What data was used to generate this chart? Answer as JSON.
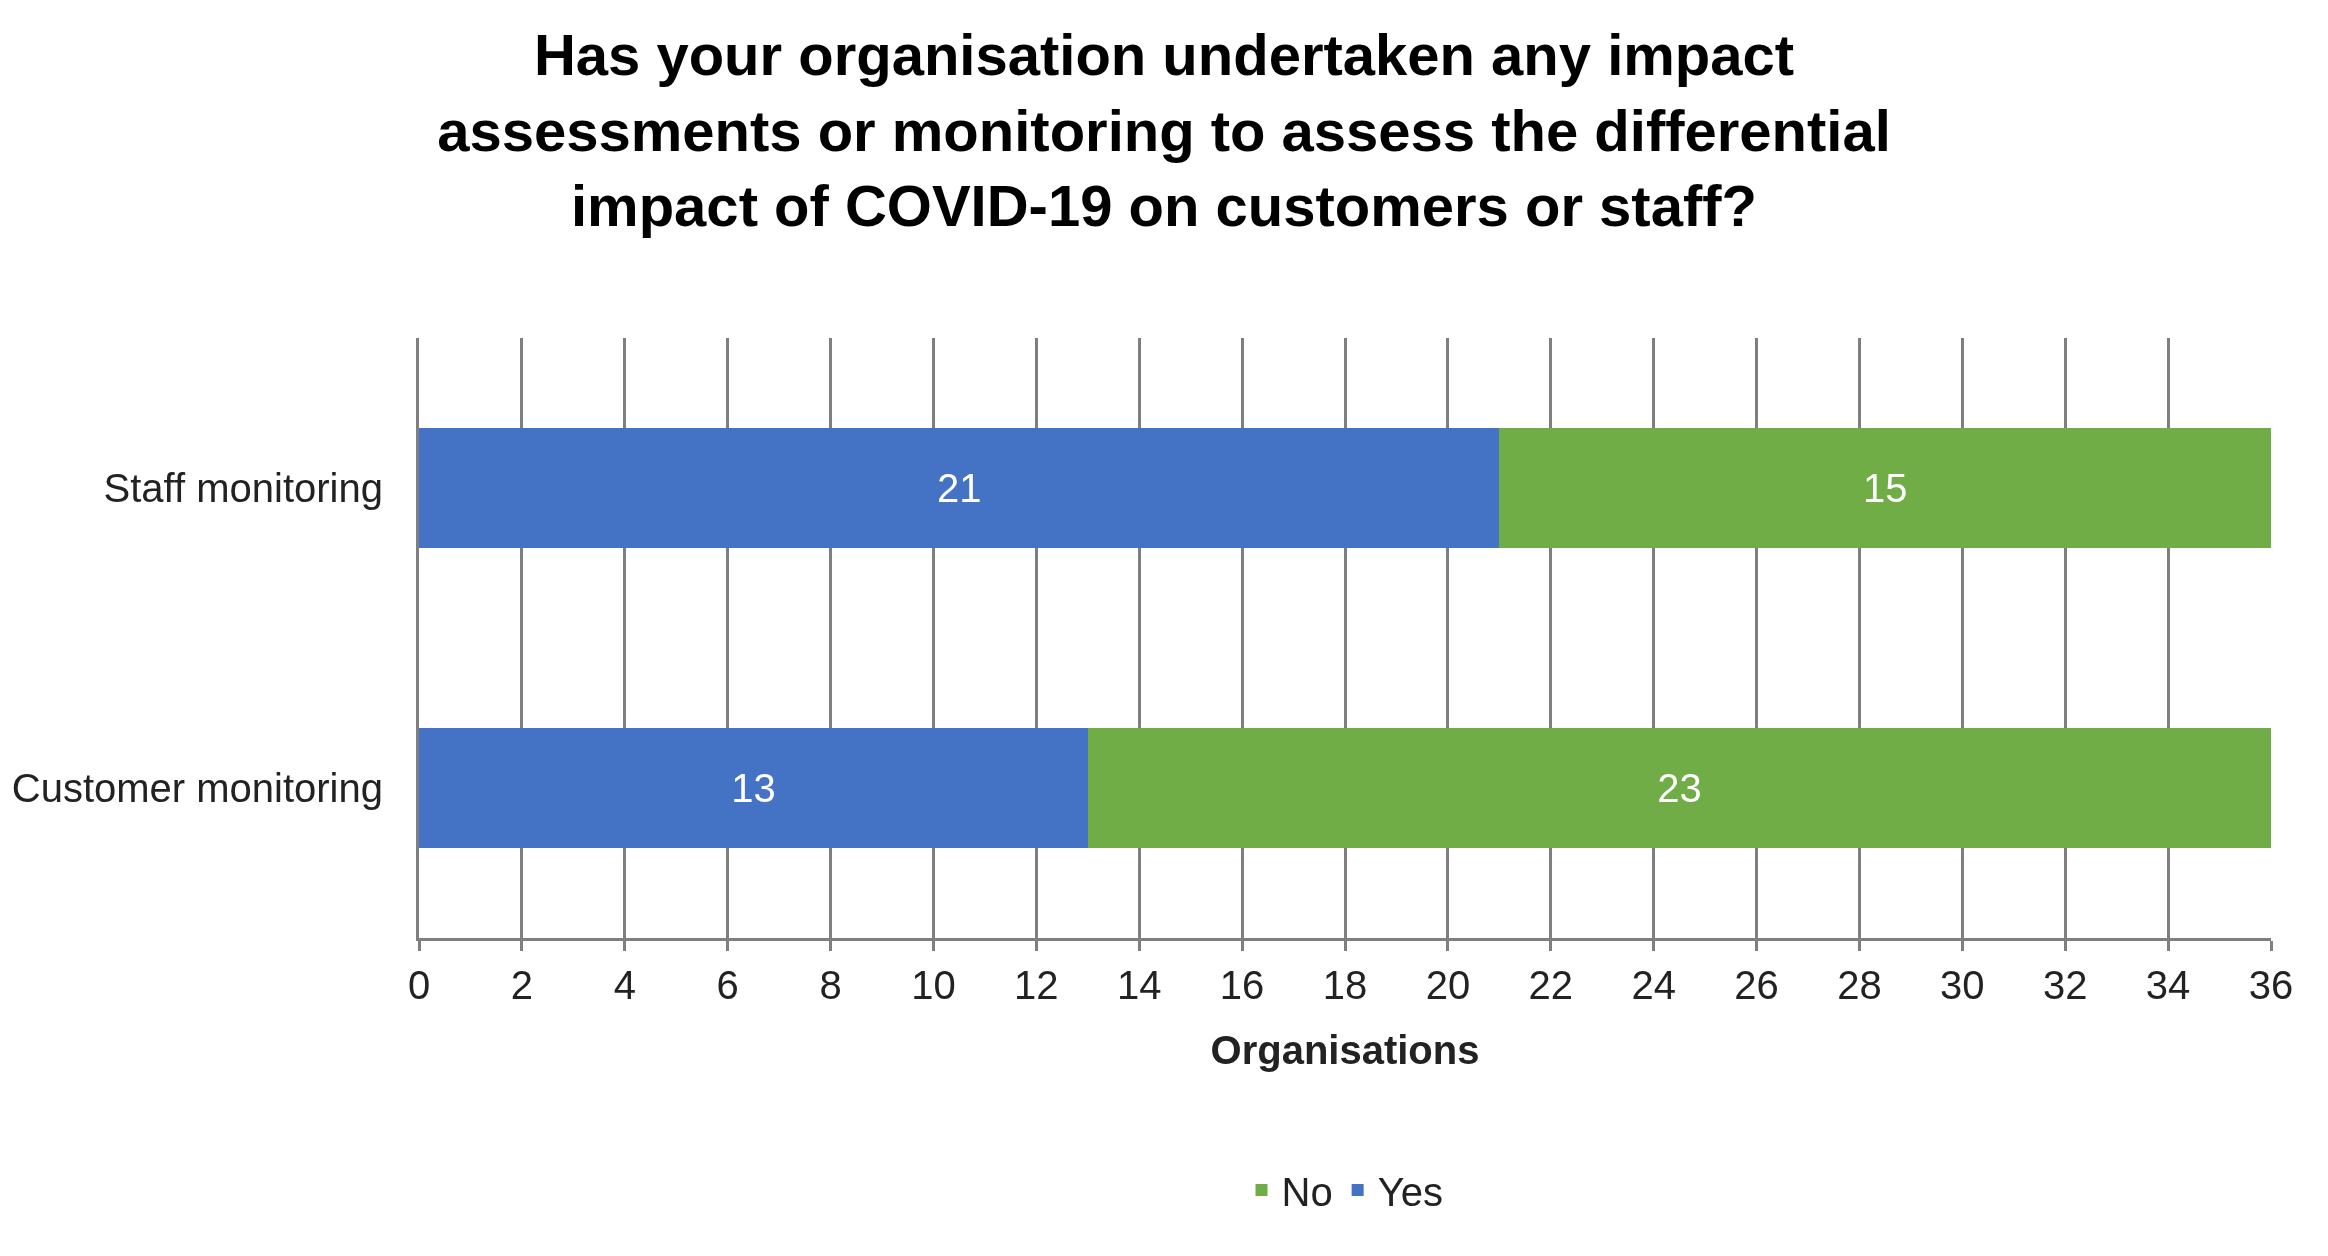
{
  "chart_data": {
    "type": "bar",
    "orientation": "horizontal",
    "stacked": true,
    "title": "Has your organisation undertaken any impact assessments or monitoring to assess the differential impact of COVID-19 on customers or staff?",
    "xlabel": "Organisations",
    "categories": [
      "Staff monitoring",
      "Customer monitoring"
    ],
    "series": [
      {
        "name": "Yes",
        "color": "#4472c4",
        "values": [
          21,
          13
        ]
      },
      {
        "name": "No",
        "color": "#70ad47",
        "values": [
          15,
          23
        ]
      }
    ],
    "xlim": [
      0,
      36
    ],
    "xticks": [
      0,
      2,
      4,
      6,
      8,
      10,
      12,
      14,
      16,
      18,
      20,
      22,
      24,
      26,
      28,
      30,
      32,
      34,
      36
    ],
    "grid": "x",
    "legend": "bottom",
    "data_labels": true
  }
}
